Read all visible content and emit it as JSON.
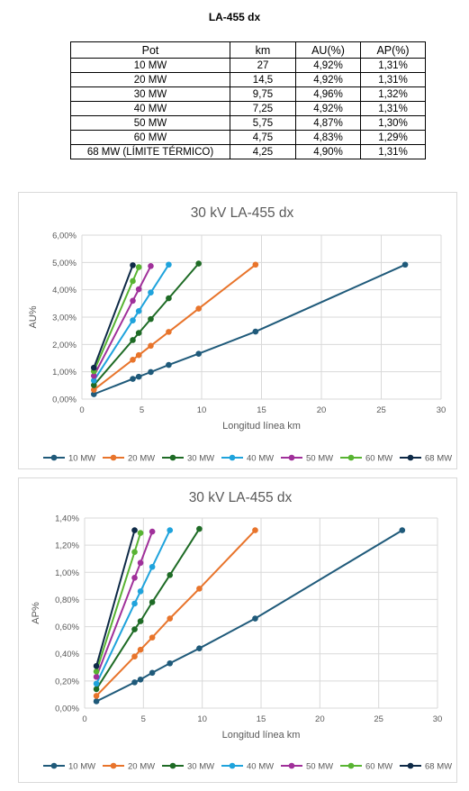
{
  "page_title": "LA-455 dx",
  "table": {
    "headers": [
      "Pot",
      "km",
      "AU(%)",
      "AP(%)"
    ],
    "rows": [
      [
        "10 MW",
        "27",
        "4,92%",
        "1,31%"
      ],
      [
        "20 MW",
        "14,5",
        "4,92%",
        "1,31%"
      ],
      [
        "30 MW",
        "9,75",
        "4,96%",
        "1,32%"
      ],
      [
        "40 MW",
        "7,25",
        "4,92%",
        "1,31%"
      ],
      [
        "50 MW",
        "5,75",
        "4,87%",
        "1,30%"
      ],
      [
        "60 MW",
        "4,75",
        "4,83%",
        "1,29%"
      ],
      [
        "68 MW (LÍMITE TÉRMICO)",
        "4,25",
        "4,90%",
        "1,31%"
      ]
    ]
  },
  "chart_data": [
    {
      "type": "line",
      "title": "30 kV LA-455 dx",
      "xlabel": "Longitud línea km",
      "ylabel": "AU%",
      "xlim": [
        0,
        30
      ],
      "ylim": [
        0,
        6
      ],
      "xticks": [
        0,
        5,
        10,
        15,
        20,
        25,
        30
      ],
      "yticks": [
        0,
        1,
        2,
        3,
        4,
        5,
        6
      ],
      "ytick_labels": [
        "0,00%",
        "1,00%",
        "2,00%",
        "3,00%",
        "4,00%",
        "5,00%",
        "6,00%"
      ],
      "grid": true,
      "legend": "bottom",
      "series": [
        {
          "name": "10 MW",
          "color": "#1f5a7a",
          "x": [
            1,
            4.25,
            4.75,
            5.75,
            7.25,
            9.75,
            14.5,
            27
          ],
          "y": [
            0.18,
            0.74,
            0.82,
            0.99,
            1.25,
            1.66,
            2.47,
            4.92
          ]
        },
        {
          "name": "20 MW",
          "color": "#e8742b",
          "x": [
            1,
            4.25,
            4.75,
            5.75,
            7.25,
            9.75,
            14.5
          ],
          "y": [
            0.34,
            1.44,
            1.61,
            1.95,
            2.46,
            3.31,
            4.92
          ]
        },
        {
          "name": "30 MW",
          "color": "#1e6b25",
          "x": [
            1,
            4.25,
            4.75,
            5.75,
            7.25,
            9.75
          ],
          "y": [
            0.51,
            2.16,
            2.42,
            2.93,
            3.69,
            4.96
          ]
        },
        {
          "name": "40 MW",
          "color": "#1fa3dc",
          "x": [
            1,
            4.25,
            4.75,
            5.75,
            7.25
          ],
          "y": [
            0.68,
            2.88,
            3.22,
            3.9,
            4.92
          ]
        },
        {
          "name": "50 MW",
          "color": "#a0309a",
          "x": [
            1,
            4.25,
            4.75,
            5.75
          ],
          "y": [
            0.85,
            3.6,
            4.02,
            4.87
          ]
        },
        {
          "name": "60 MW",
          "color": "#58b432",
          "x": [
            1,
            4.25,
            4.75
          ],
          "y": [
            1.02,
            4.32,
            4.83
          ]
        },
        {
          "name": "68 MW",
          "color": "#0e2a47",
          "x": [
            1,
            4.25
          ],
          "y": [
            1.15,
            4.9
          ]
        }
      ]
    },
    {
      "type": "line",
      "title": "30 kV LA-455 dx",
      "xlabel": "Longitud línea km",
      "ylabel": "AP%",
      "xlim": [
        0,
        30
      ],
      "ylim": [
        0,
        1.4
      ],
      "xticks": [
        0,
        5,
        10,
        15,
        20,
        25,
        30
      ],
      "yticks": [
        0,
        0.2,
        0.4,
        0.6,
        0.8,
        1.0,
        1.2,
        1.4
      ],
      "ytick_labels": [
        "0,00%",
        "0,20%",
        "0,40%",
        "0,60%",
        "0,80%",
        "1,00%",
        "1,20%",
        "1,40%"
      ],
      "grid": true,
      "legend": "bottom",
      "series": [
        {
          "name": "10 MW",
          "color": "#1f5a7a",
          "x": [
            1,
            4.25,
            4.75,
            5.75,
            7.25,
            9.75,
            14.5,
            27
          ],
          "y": [
            0.05,
            0.19,
            0.21,
            0.26,
            0.33,
            0.44,
            0.66,
            1.31
          ]
        },
        {
          "name": "20 MW",
          "color": "#e8742b",
          "x": [
            1,
            4.25,
            4.75,
            5.75,
            7.25,
            9.75,
            14.5
          ],
          "y": [
            0.09,
            0.38,
            0.43,
            0.52,
            0.66,
            0.88,
            1.31
          ]
        },
        {
          "name": "30 MW",
          "color": "#1e6b25",
          "x": [
            1,
            4.25,
            4.75,
            5.75,
            7.25,
            9.75
          ],
          "y": [
            0.14,
            0.58,
            0.64,
            0.78,
            0.98,
            1.32
          ]
        },
        {
          "name": "40 MW",
          "color": "#1fa3dc",
          "x": [
            1,
            4.25,
            4.75,
            5.75,
            7.25
          ],
          "y": [
            0.18,
            0.77,
            0.86,
            1.04,
            1.31
          ]
        },
        {
          "name": "50 MW",
          "color": "#a0309a",
          "x": [
            1,
            4.25,
            4.75,
            5.75
          ],
          "y": [
            0.23,
            0.96,
            1.07,
            1.3
          ]
        },
        {
          "name": "60 MW",
          "color": "#58b432",
          "x": [
            1,
            4.25,
            4.75
          ],
          "y": [
            0.27,
            1.15,
            1.29
          ]
        },
        {
          "name": "68 MW",
          "color": "#0e2a47",
          "x": [
            1,
            4.25
          ],
          "y": [
            0.31,
            1.31
          ]
        }
      ]
    }
  ]
}
